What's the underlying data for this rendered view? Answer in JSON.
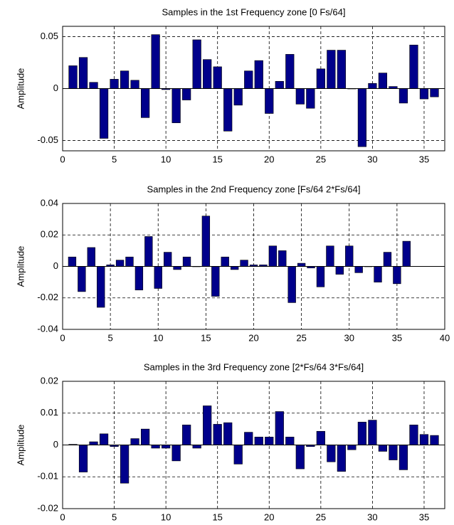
{
  "chart_data": [
    {
      "type": "bar",
      "title": "Samples in the 1st Frequency zone [0 Fs/64]",
      "y_label": "Amplitude",
      "color": "#00008b",
      "grid": true,
      "x": [
        1,
        2,
        3,
        4,
        5,
        6,
        7,
        8,
        9,
        10,
        11,
        12,
        13,
        14,
        15,
        16,
        17,
        18,
        19,
        20,
        21,
        22,
        23,
        24,
        25,
        26,
        27,
        28,
        29,
        30,
        31,
        32,
        33,
        34,
        35,
        36
      ],
      "values": [
        0.022,
        0.03,
        0.006,
        -0.048,
        0.009,
        0.017,
        0.008,
        -0.028,
        0.052,
        -0.001,
        -0.033,
        -0.011,
        0.047,
        0.028,
        0.021,
        -0.041,
        -0.016,
        0.017,
        0.027,
        -0.024,
        0.007,
        0.033,
        -0.015,
        -0.019,
        0.019,
        0.037,
        0.037,
        0,
        -0.056,
        0.005,
        0.015,
        0.002,
        -0.014,
        0.042,
        -0.01,
        -0.008
      ],
      "xlim": [
        0,
        37
      ],
      "xticks": [
        0,
        5,
        10,
        15,
        20,
        25,
        30,
        35
      ],
      "ylim": [
        -0.06,
        0.06
      ],
      "yticks": [
        -0.05,
        0,
        0.05
      ]
    },
    {
      "type": "bar",
      "title": "Samples in the 2nd Frequency zone [Fs/64 2*Fs/64]",
      "y_label": "Amplitude",
      "color": "#00008b",
      "grid": true,
      "x": [
        1,
        2,
        3,
        4,
        5,
        6,
        7,
        8,
        9,
        10,
        11,
        12,
        13,
        14,
        15,
        16,
        17,
        18,
        19,
        20,
        21,
        22,
        23,
        24,
        25,
        26,
        27,
        28,
        29,
        30,
        31,
        32,
        33,
        34,
        35,
        36
      ],
      "values": [
        0.006,
        -0.016,
        0.012,
        -0.026,
        0.001,
        0.004,
        0.006,
        -0.015,
        0.019,
        -0.014,
        0.009,
        -0.002,
        0.006,
        0,
        0.032,
        -0.019,
        0.006,
        -0.002,
        0.004,
        0.001,
        0.001,
        0.013,
        0.01,
        -0.023,
        0.002,
        -0.001,
        -0.013,
        0.013,
        -0.005,
        0.013,
        -0.004,
        0,
        -0.01,
        0.009,
        -0.011,
        0.016
      ],
      "xlim": [
        0,
        40
      ],
      "xticks": [
        0,
        5,
        10,
        15,
        20,
        25,
        30,
        35,
        40
      ],
      "ylim": [
        -0.04,
        0.04
      ],
      "yticks": [
        -0.04,
        -0.02,
        0,
        0.02,
        0.04
      ]
    },
    {
      "type": "bar",
      "title": "Samples in the 3rd Frequency zone [2*Fs/64 3*Fs/64]",
      "y_label": "Amplitude",
      "color": "#00008b",
      "grid": true,
      "x": [
        1,
        2,
        3,
        4,
        5,
        6,
        7,
        8,
        9,
        10,
        11,
        12,
        13,
        14,
        15,
        16,
        17,
        18,
        19,
        20,
        21,
        22,
        23,
        24,
        25,
        26,
        27,
        28,
        29,
        30,
        31,
        32,
        33,
        34,
        35,
        36
      ],
      "values": [
        0.0002,
        -0.0085,
        0.001,
        0.0035,
        -0.0005,
        -0.012,
        0.002,
        0.005,
        -0.001,
        -0.001,
        -0.005,
        0.0063,
        -0.001,
        0.0123,
        0.0065,
        0.007,
        -0.006,
        0.004,
        0.0025,
        0.0025,
        0.0105,
        0.0025,
        -0.0075,
        -0.0005,
        0.0043,
        -0.0053,
        -0.0083,
        -0.0015,
        0.0072,
        0.0078,
        -0.002,
        -0.0047,
        -0.0078,
        0.0063,
        0.0033,
        0.003
      ],
      "xlim": [
        0,
        37
      ],
      "xticks": [
        0,
        5,
        10,
        15,
        20,
        25,
        30,
        35
      ],
      "ylim": [
        -0.02,
        0.02
      ],
      "yticks": [
        -0.02,
        -0.01,
        0,
        0.01,
        0.02
      ]
    }
  ]
}
